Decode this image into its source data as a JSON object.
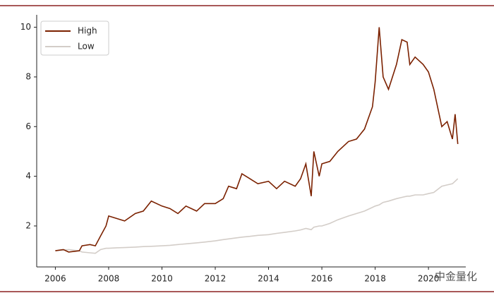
{
  "chart_data": {
    "type": "line",
    "x": [
      2006.0,
      2006.3,
      2006.5,
      2006.9,
      2007.0,
      2007.3,
      2007.5,
      2007.7,
      2007.9,
      2008.0,
      2008.3,
      2008.6,
      2009.0,
      2009.3,
      2009.6,
      2010.0,
      2010.3,
      2010.6,
      2010.9,
      2011.3,
      2011.6,
      2012.0,
      2012.3,
      2012.5,
      2012.8,
      2013.0,
      2013.3,
      2013.6,
      2014.0,
      2014.3,
      2014.6,
      2015.0,
      2015.2,
      2015.4,
      2015.6,
      2015.7,
      2015.9,
      2016.0,
      2016.3,
      2016.6,
      2017.0,
      2017.3,
      2017.6,
      2017.9,
      2018.0,
      2018.15,
      2018.3,
      2018.5,
      2018.8,
      2019.0,
      2019.2,
      2019.3,
      2019.5,
      2019.8,
      2020.0,
      2020.2,
      2020.5,
      2020.7,
      2020.9,
      2021.0,
      2021.1
    ],
    "series": [
      {
        "name": "High",
        "color": "#7b2100",
        "values": [
          1.0,
          1.05,
          0.95,
          1.0,
          1.2,
          1.25,
          1.2,
          1.6,
          2.0,
          2.4,
          2.3,
          2.2,
          2.5,
          2.6,
          3.0,
          2.8,
          2.7,
          2.5,
          2.8,
          2.6,
          2.9,
          2.9,
          3.1,
          3.6,
          3.5,
          4.1,
          3.9,
          3.7,
          3.8,
          3.5,
          3.8,
          3.6,
          3.9,
          4.5,
          3.2,
          5.0,
          4.0,
          4.5,
          4.6,
          5.0,
          5.4,
          5.5,
          5.9,
          6.8,
          7.8,
          10.0,
          8.0,
          7.5,
          8.5,
          9.5,
          9.4,
          8.5,
          8.8,
          8.5,
          8.2,
          7.5,
          6.0,
          6.2,
          5.5,
          6.5,
          5.3
        ]
      },
      {
        "name": "Low",
        "color": "#d3cdc8",
        "values": [
          1.0,
          1.03,
          1.05,
          1.0,
          0.95,
          0.92,
          0.9,
          1.05,
          1.1,
          1.1,
          1.12,
          1.13,
          1.15,
          1.17,
          1.18,
          1.2,
          1.22,
          1.25,
          1.28,
          1.32,
          1.35,
          1.4,
          1.45,
          1.48,
          1.52,
          1.55,
          1.58,
          1.62,
          1.65,
          1.7,
          1.74,
          1.8,
          1.84,
          1.9,
          1.85,
          1.95,
          2.0,
          2.0,
          2.1,
          2.25,
          2.4,
          2.5,
          2.6,
          2.75,
          2.8,
          2.85,
          2.95,
          3.0,
          3.1,
          3.15,
          3.2,
          3.2,
          3.25,
          3.25,
          3.3,
          3.35,
          3.6,
          3.65,
          3.7,
          3.8,
          3.9
        ]
      }
    ],
    "xlim": [
      2005.3,
      2021.4
    ],
    "xticks": [
      2006,
      2008,
      2010,
      2012,
      2014,
      2016,
      2018,
      2020
    ],
    "ylim": [
      0.35,
      10.5
    ],
    "yticks": [
      2,
      4,
      6,
      8,
      10
    ],
    "legend": "upper left",
    "watermark": "中金量化"
  }
}
